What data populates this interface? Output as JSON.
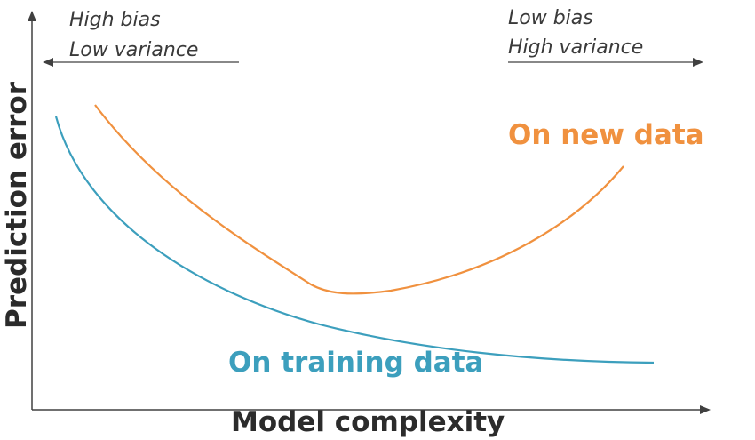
{
  "diagram": {
    "x_axis_title": "Model complexity",
    "y_axis_title": "Prediction error",
    "left_annotation": {
      "line1": "High bias",
      "line2": "Low variance"
    },
    "right_annotation": {
      "line1": "Low bias",
      "line2": "High variance"
    },
    "curves": {
      "new_data": {
        "label": "On new data",
        "color": "#f0913f"
      },
      "training_data": {
        "label": "On training data",
        "color": "#3c9fbd"
      }
    },
    "axis_color": "#404040"
  }
}
